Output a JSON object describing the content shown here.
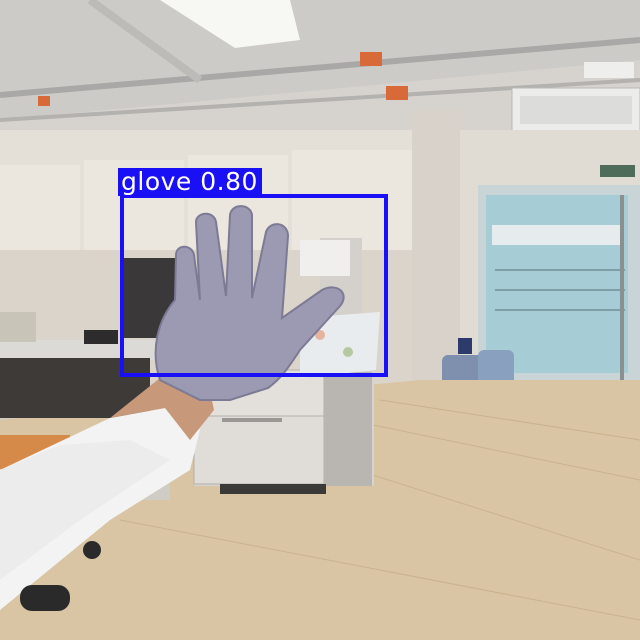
{
  "detection": {
    "label": "glove 0.80",
    "class_name": "glove",
    "confidence": 0.8,
    "box_color": "#1a10f5"
  }
}
